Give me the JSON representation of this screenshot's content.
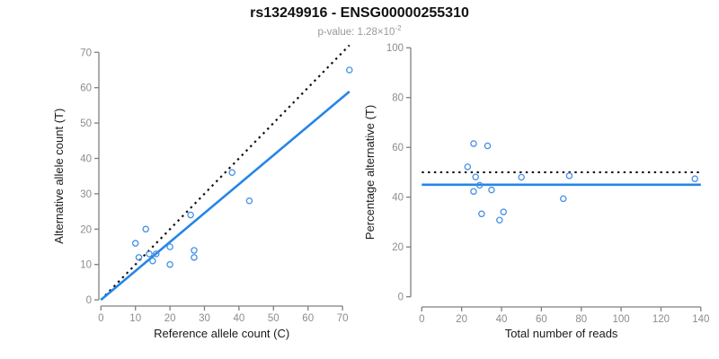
{
  "header": {
    "title": "rs13249916 - ENSG00000255310",
    "subtitle_main": "p-value: 1.28×10",
    "subtitle_exponent": "-2"
  },
  "colors": {
    "accent_blue": "#2585e8",
    "point_blue": "#4490e6",
    "dotted_black": "#111111",
    "axis_line": "#7f7f7f",
    "tick_label": "#8c8c8c",
    "axis_title": "#1a1a1a"
  },
  "chart_data": [
    {
      "id": "left",
      "type": "scatter",
      "xlabel": "Reference allele count (C)",
      "ylabel": "Alternative allele count (T)",
      "xlim": [
        0,
        72
      ],
      "ylim": [
        0,
        72
      ],
      "xticks": [
        0,
        10,
        20,
        30,
        40,
        50,
        60,
        70
      ],
      "yticks": [
        0,
        10,
        20,
        30,
        40,
        50,
        60,
        70
      ],
      "grid": false,
      "points": [
        [
          10,
          16
        ],
        [
          13,
          20
        ],
        [
          11,
          12
        ],
        [
          14,
          13
        ],
        [
          16,
          13
        ],
        [
          15,
          11
        ],
        [
          20,
          15
        ],
        [
          20,
          10
        ],
        [
          27,
          14
        ],
        [
          27,
          12
        ],
        [
          26,
          24
        ],
        [
          38,
          36
        ],
        [
          43,
          28
        ],
        [
          72,
          65
        ]
      ],
      "lines": [
        {
          "name": "identity-line",
          "style": "dotted",
          "color": "#111111",
          "x1": 0,
          "y1": 0,
          "x2": 72,
          "y2": 72
        },
        {
          "name": "regression-line",
          "style": "solid",
          "color": "#2585e8",
          "x1": 0,
          "y1": 0,
          "x2": 72,
          "y2": 58.9
        }
      ]
    },
    {
      "id": "right",
      "type": "scatter",
      "xlabel": "Total number of reads",
      "ylabel": "Percentage alternative (T)",
      "xlim": [
        0,
        140
      ],
      "ylim": [
        0,
        100
      ],
      "xticks": [
        0,
        20,
        40,
        60,
        80,
        100,
        120,
        140
      ],
      "yticks": [
        0,
        20,
        40,
        60,
        80,
        100
      ],
      "grid": false,
      "points": [
        [
          26,
          61.5
        ],
        [
          33,
          60.6
        ],
        [
          23,
          52.2
        ],
        [
          27,
          48.1
        ],
        [
          29,
          44.8
        ],
        [
          26,
          42.3
        ],
        [
          35,
          42.9
        ],
        [
          30,
          33.3
        ],
        [
          41,
          34.1
        ],
        [
          39,
          30.8
        ],
        [
          50,
          48.0
        ],
        [
          74,
          48.6
        ],
        [
          71,
          39.4
        ],
        [
          137,
          47.4
        ]
      ],
      "lines": [
        {
          "name": "null-50pct-line",
          "style": "dotted",
          "color": "#111111",
          "x1": 0,
          "y1": 50,
          "x2": 140,
          "y2": 50
        },
        {
          "name": "fitted-45pct-line",
          "style": "solid",
          "color": "#2585e8",
          "x1": 0,
          "y1": 45,
          "x2": 140,
          "y2": 45
        }
      ]
    }
  ]
}
